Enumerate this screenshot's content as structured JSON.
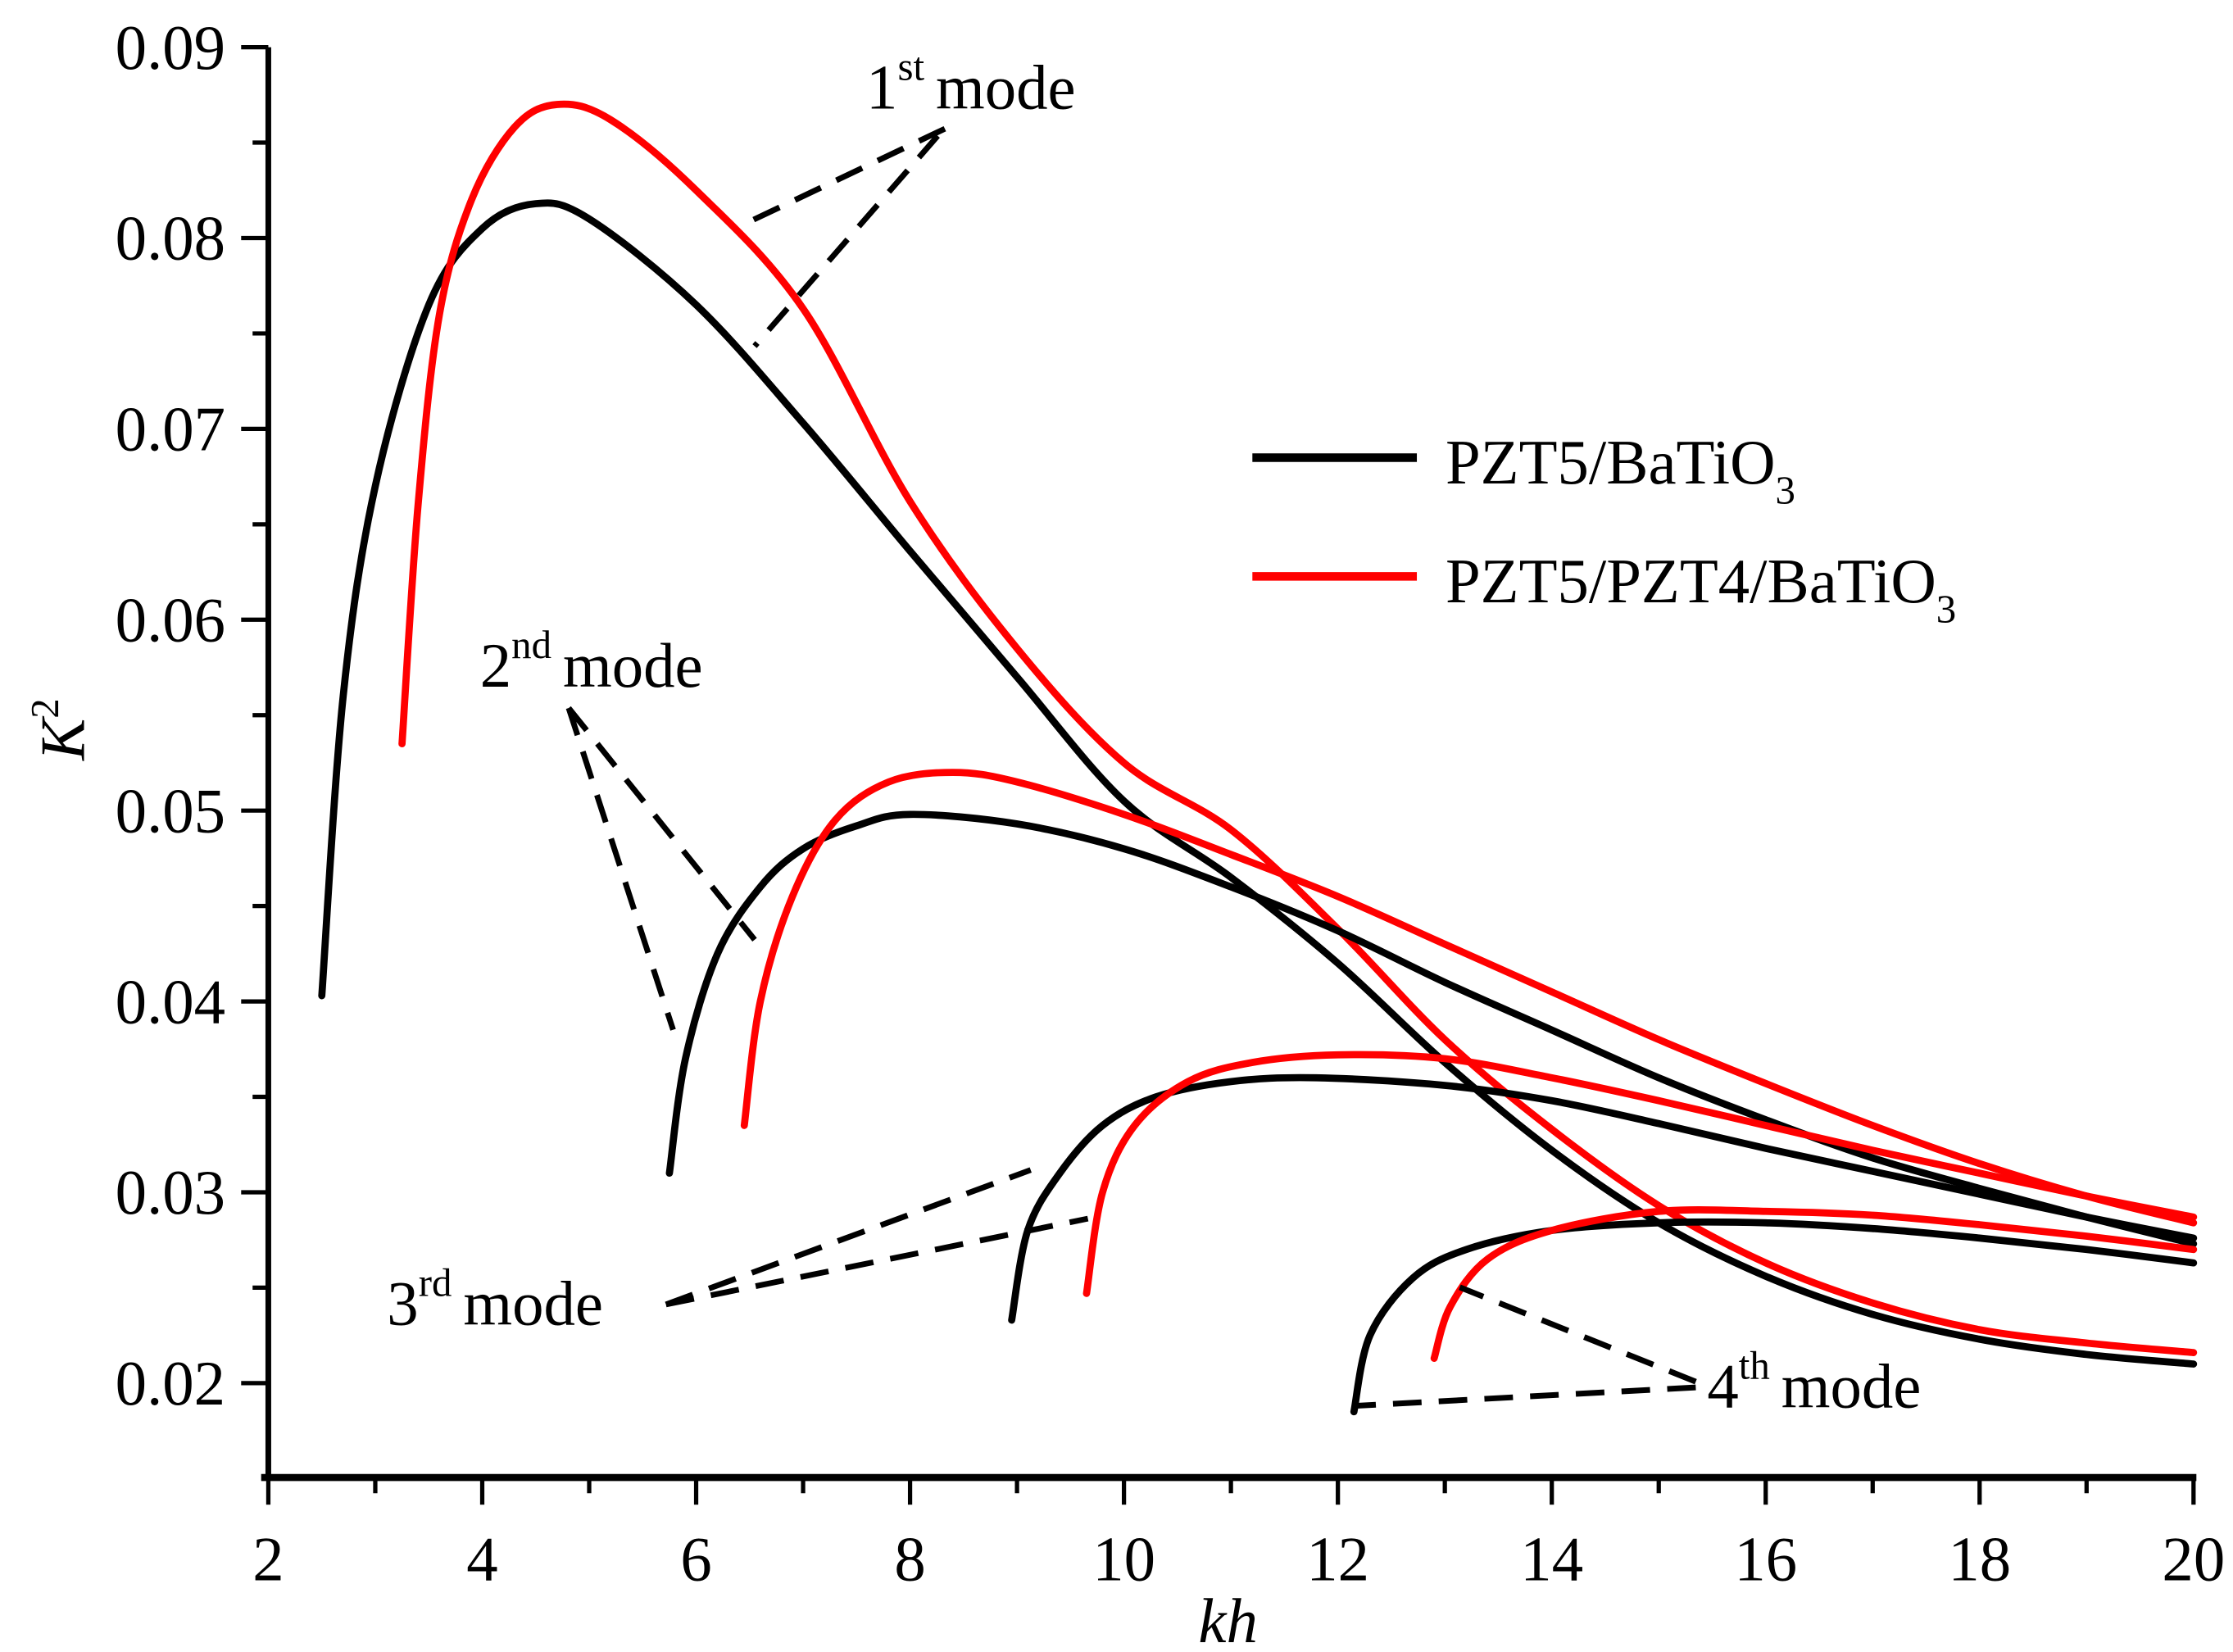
{
  "chart_data": {
    "type": "line",
    "title": "",
    "xlabel": "kh",
    "ylabel_base": "K",
    "ylabel_sup": "2",
    "xlim": [
      2,
      20
    ],
    "ylim": [
      0.015,
      0.09
    ],
    "xticks": [
      "2",
      "4",
      "6",
      "8",
      "10",
      "12",
      "14",
      "16",
      "18",
      "20"
    ],
    "yticks": [
      "0.02",
      "0.03",
      "0.04",
      "0.05",
      "0.06",
      "0.07",
      "0.08",
      "0.09"
    ],
    "legend": {
      "placement": "upper-right",
      "entries": [
        {
          "label_main": "PZT5/BaTiO",
          "label_sub": "3",
          "color": "#000000"
        },
        {
          "label_main": "PZT5/PZT4/BaTiO",
          "label_sub": "3",
          "color": "#ff0000"
        }
      ]
    },
    "series": [
      {
        "name": "PZT5/BaTiO3 1st mode",
        "color": "#000000",
        "points": [
          [
            2.5,
            0.0403
          ],
          [
            2.7,
            0.056
          ],
          [
            3,
            0.067
          ],
          [
            3.5,
            0.0765
          ],
          [
            4,
            0.0805
          ],
          [
            4.5,
            0.0818
          ],
          [
            5,
            0.081
          ],
          [
            6,
            0.0765
          ],
          [
            7,
            0.0703
          ],
          [
            8,
            0.0636
          ],
          [
            9,
            0.057
          ],
          [
            10,
            0.0505
          ],
          [
            11,
            0.0465
          ],
          [
            12,
            0.042
          ],
          [
            13,
            0.0368
          ],
          [
            14,
            0.0322
          ],
          [
            15,
            0.0284
          ],
          [
            16,
            0.0256
          ],
          [
            17,
            0.0236
          ],
          [
            18,
            0.0223
          ],
          [
            19,
            0.0215
          ],
          [
            20,
            0.021
          ]
        ]
      },
      {
        "name": "PZT5/PZT4/BaTiO3 1st mode",
        "color": "#ff0000",
        "points": [
          [
            3.25,
            0.0535
          ],
          [
            3.4,
            0.066
          ],
          [
            3.6,
            0.076
          ],
          [
            3.9,
            0.082
          ],
          [
            4.3,
            0.0858
          ],
          [
            4.7,
            0.087
          ],
          [
            5.2,
            0.0862
          ],
          [
            6,
            0.0825
          ],
          [
            7,
            0.0763
          ],
          [
            8,
            0.0662
          ],
          [
            9,
            0.0585
          ],
          [
            10,
            0.0525
          ],
          [
            11,
            0.049
          ],
          [
            12,
            0.0438
          ],
          [
            13,
            0.038
          ],
          [
            14,
            0.0333
          ],
          [
            15,
            0.0293
          ],
          [
            16,
            0.0263
          ],
          [
            17,
            0.0242
          ],
          [
            18,
            0.0228
          ],
          [
            19,
            0.0221
          ],
          [
            20,
            0.0216
          ]
        ]
      },
      {
        "name": "PZT5/BaTiO3 2nd mode",
        "color": "#000000",
        "points": [
          [
            5.75,
            0.031
          ],
          [
            5.9,
            0.037
          ],
          [
            6.2,
            0.0425
          ],
          [
            6.6,
            0.046
          ],
          [
            7,
            0.048
          ],
          [
            7.5,
            0.0492
          ],
          [
            8,
            0.0498
          ],
          [
            9,
            0.0493
          ],
          [
            10,
            0.048
          ],
          [
            11,
            0.046
          ],
          [
            12,
            0.0437
          ],
          [
            13,
            0.041
          ],
          [
            14,
            0.0385
          ],
          [
            15,
            0.036
          ],
          [
            16,
            0.0338
          ],
          [
            17,
            0.0318
          ],
          [
            18,
            0.0302
          ],
          [
            19,
            0.0287
          ],
          [
            20,
            0.0273
          ]
        ]
      },
      {
        "name": "PZT5/PZT4/BaTiO3 2nd mode",
        "color": "#ff0000",
        "points": [
          [
            6.45,
            0.0335
          ],
          [
            6.6,
            0.04
          ],
          [
            6.9,
            0.0455
          ],
          [
            7.3,
            0.0495
          ],
          [
            7.8,
            0.0515
          ],
          [
            8.4,
            0.052
          ],
          [
            9,
            0.0515
          ],
          [
            10,
            0.0498
          ],
          [
            11,
            0.0477
          ],
          [
            12,
            0.0455
          ],
          [
            13,
            0.043
          ],
          [
            14,
            0.0405
          ],
          [
            15,
            0.038
          ],
          [
            16,
            0.0357
          ],
          [
            17,
            0.0335
          ],
          [
            18,
            0.0315
          ],
          [
            19,
            0.0298
          ],
          [
            20,
            0.0284
          ]
        ]
      },
      {
        "name": "PZT5/BaTiO3 3rd mode",
        "color": "#000000",
        "points": [
          [
            8.95,
            0.0233
          ],
          [
            9.1,
            0.028
          ],
          [
            9.4,
            0.031
          ],
          [
            9.8,
            0.0335
          ],
          [
            10.3,
            0.035
          ],
          [
            11,
            0.0358
          ],
          [
            11.8,
            0.036
          ],
          [
            13,
            0.0356
          ],
          [
            14,
            0.0348
          ],
          [
            15,
            0.0336
          ],
          [
            16,
            0.0323
          ],
          [
            17,
            0.0311
          ],
          [
            18,
            0.0299
          ],
          [
            19,
            0.0287
          ],
          [
            20,
            0.0276
          ]
        ]
      },
      {
        "name": "PZT5/PZT4/BaTiO3 3rd mode",
        "color": "#ff0000",
        "points": [
          [
            9.65,
            0.0247
          ],
          [
            9.8,
            0.03
          ],
          [
            10.1,
            0.0335
          ],
          [
            10.6,
            0.0358
          ],
          [
            11.2,
            0.0368
          ],
          [
            12,
            0.0372
          ],
          [
            13,
            0.037
          ],
          [
            14,
            0.036
          ],
          [
            15,
            0.0348
          ],
          [
            16,
            0.0335
          ],
          [
            17,
            0.0322
          ],
          [
            18,
            0.031
          ],
          [
            19,
            0.0298
          ],
          [
            20,
            0.0287
          ]
        ]
      },
      {
        "name": "PZT5/BaTiO3 4th mode",
        "color": "#000000",
        "points": [
          [
            12.15,
            0.0185
          ],
          [
            12.3,
            0.0225
          ],
          [
            12.7,
            0.0255
          ],
          [
            13.2,
            0.027
          ],
          [
            14,
            0.028
          ],
          [
            15,
            0.0284
          ],
          [
            16,
            0.0284
          ],
          [
            17,
            0.0281
          ],
          [
            18,
            0.0276
          ],
          [
            19,
            0.027
          ],
          [
            20,
            0.0263
          ]
        ]
      },
      {
        "name": "PZT5/PZT4/BaTiO3 4th mode",
        "color": "#ff0000",
        "points": [
          [
            12.9,
            0.0213
          ],
          [
            13.05,
            0.024
          ],
          [
            13.4,
            0.0265
          ],
          [
            14,
            0.028
          ],
          [
            15,
            0.029
          ],
          [
            16,
            0.029
          ],
          [
            17,
            0.0288
          ],
          [
            18,
            0.0283
          ],
          [
            19,
            0.0277
          ],
          [
            20,
            0.027
          ]
        ]
      }
    ],
    "annotations": [
      {
        "num": "1",
        "sup": "st",
        "word": "mode"
      },
      {
        "num": "2",
        "sup": "nd",
        "word": "mode"
      },
      {
        "num": "3",
        "sup": "rd",
        "word": "mode"
      },
      {
        "num": "4",
        "sup": "th",
        "word": "mode"
      }
    ]
  }
}
